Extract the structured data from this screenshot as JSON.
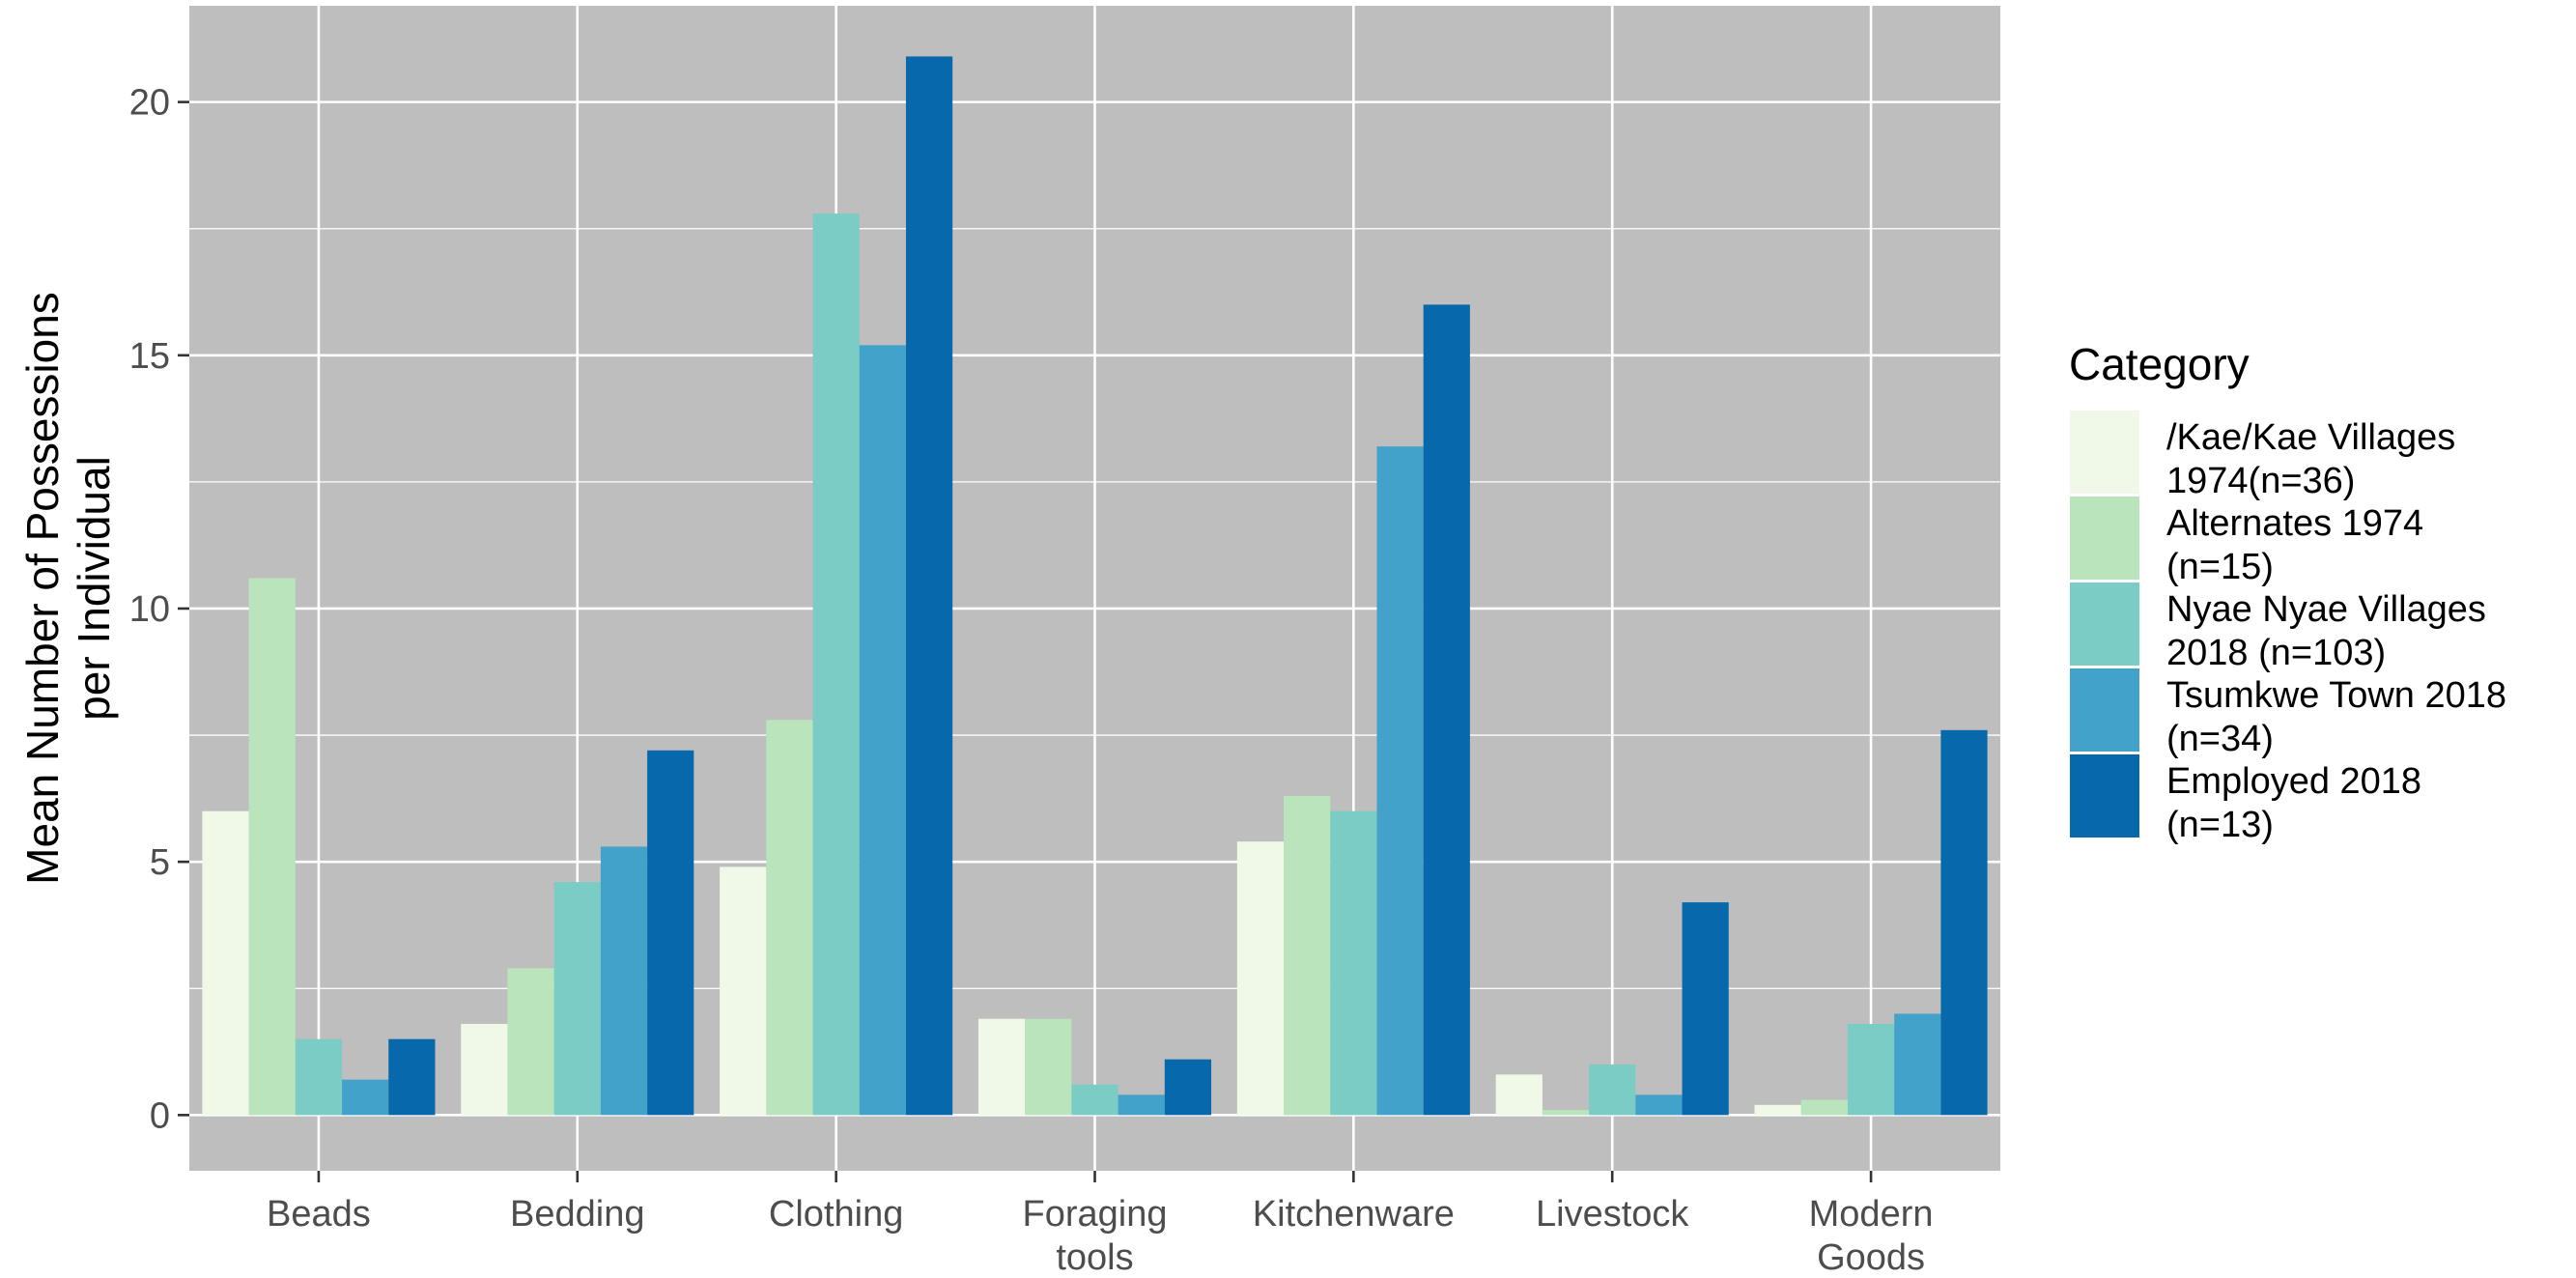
{
  "chart_data": {
    "type": "bar",
    "categories": [
      [
        "Beads"
      ],
      [
        "Bedding"
      ],
      [
        "Clothing"
      ],
      [
        "Foraging",
        "tools"
      ],
      [
        "Kitchenware"
      ],
      [
        "Livestock"
      ],
      [
        "Modern",
        "Goods"
      ]
    ],
    "ylabel": [
      "Mean Number of Possessions",
      "per Individual"
    ],
    "xlabel": "",
    "ylim": [
      -1.1,
      21.9
    ],
    "yticks": [
      0,
      5,
      10,
      15,
      20
    ],
    "grid": true,
    "legend": {
      "title": "Category",
      "placement": "right"
    },
    "series": [
      {
        "name": [
          "/Kae/Kae Villages",
          "1974(n=36)"
        ],
        "color": "#f0f9e8",
        "values": [
          6.0,
          1.8,
          4.9,
          1.9,
          5.4,
          0.8,
          0.2
        ]
      },
      {
        "name": [
          "Alternates 1974",
          "(n=15)"
        ],
        "color": "#bae4bc",
        "values": [
          10.6,
          2.9,
          7.8,
          1.9,
          6.3,
          0.1,
          0.3
        ]
      },
      {
        "name": [
          "Nyae Nyae Villages",
          "2018 (n=103)"
        ],
        "color": "#7bccc4",
        "values": [
          1.5,
          4.6,
          17.8,
          0.6,
          6.0,
          1.0,
          1.8
        ]
      },
      {
        "name": [
          "Tsumkwe Town 2018",
          "(n=34)"
        ],
        "color": "#43a2ca",
        "values": [
          0.7,
          5.3,
          15.2,
          0.4,
          13.2,
          0.4,
          2.0
        ]
      },
      {
        "name": [
          "Employed 2018",
          "(n=13)"
        ],
        "color": "#0868ac",
        "values": [
          1.5,
          7.2,
          20.9,
          1.1,
          16.0,
          4.2,
          7.6
        ]
      }
    ],
    "panel_color": "#bebebe",
    "grid_color": "#ffffff"
  }
}
